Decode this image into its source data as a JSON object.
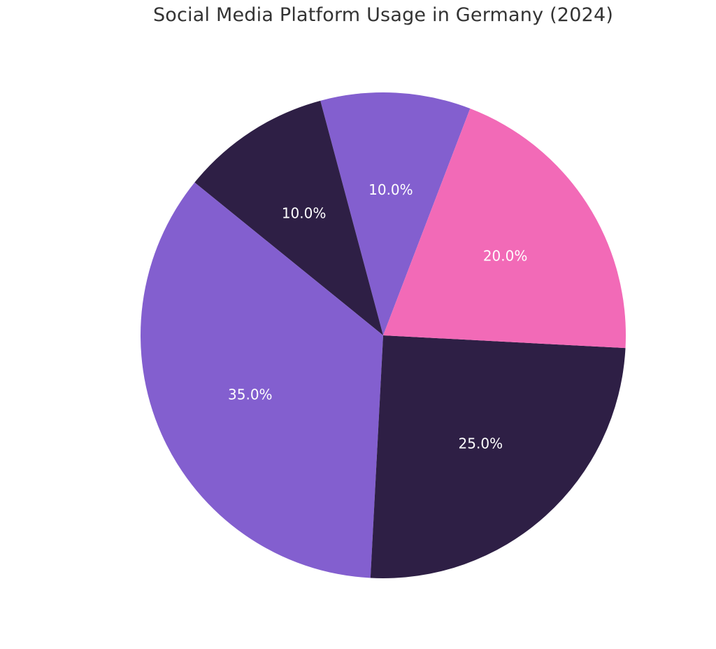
{
  "chart_data": {
    "type": "pie",
    "title": "Social Media Platform Usage in Germany (2024)",
    "start_angle_deg": 69,
    "direction": "counterclockwise",
    "slices": [
      {
        "value": 10.0,
        "label_text": "10.0%",
        "color": "#835FCF"
      },
      {
        "value": 10.0,
        "label_text": "10.0%",
        "color": "#2E1F45"
      },
      {
        "value": 35.0,
        "label_text": "35.0%",
        "color": "#835FCF"
      },
      {
        "value": 25.0,
        "label_text": "25.0%",
        "color": "#2E1F45"
      },
      {
        "value": 20.0,
        "label_text": "20.0%",
        "color": "#F26AB7"
      }
    ]
  }
}
